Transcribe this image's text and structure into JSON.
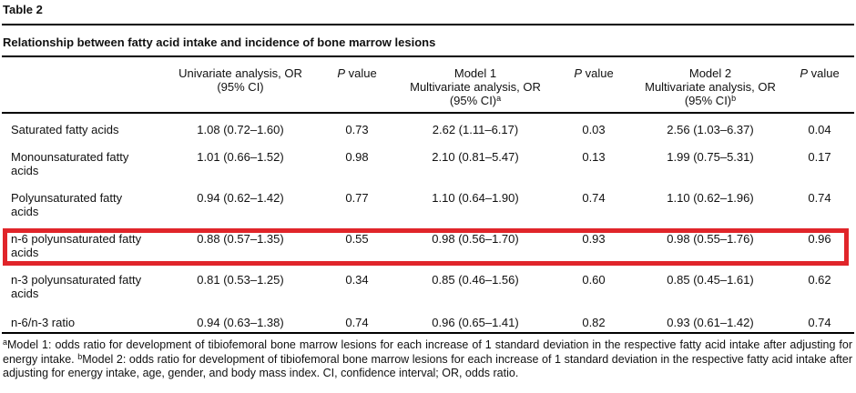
{
  "page": {
    "table_label": "Table 2",
    "title": "Relationship between fatty acid intake and incidence of bone marrow lesions"
  },
  "table": {
    "highlight_color": "#e0252a",
    "headers": {
      "univariate": {
        "line1": "Univariate analysis, OR",
        "line2": "(95% CI)"
      },
      "p1": {
        "italic": "P",
        "rest": " value"
      },
      "model1": {
        "line1": "Model 1",
        "line2": "Multivariate analysis, OR",
        "line3": "(95% CI)",
        "sup": "a"
      },
      "p2": {
        "italic": "P",
        "rest": " value"
      },
      "model2": {
        "line1": "Model 2",
        "line2": "Multivariate analysis, OR",
        "line3": "(95% CI)",
        "sup": "b"
      },
      "p3": {
        "italic": "P",
        "rest": " value"
      }
    },
    "rows": [
      {
        "label": "Saturated fatty acids",
        "univariate": "1.08 (0.72–1.60)",
        "p1": "0.73",
        "model1": "2.62 (1.11–6.17)",
        "p2": "0.03",
        "model2": "2.56 (1.03–6.37)",
        "p3": "0.04",
        "highlighted": false
      },
      {
        "label": "Monounsaturated fatty acids",
        "univariate": "1.01 (0.66–1.52)",
        "p1": "0.98",
        "model1": "2.10 (0.81–5.47)",
        "p2": "0.13",
        "model2": "1.99 (0.75–5.31)",
        "p3": "0.17",
        "highlighted": false
      },
      {
        "label": "Polyunsaturated fatty acids",
        "univariate": "0.94 (0.62–1.42)",
        "p1": "0.77",
        "model1": "1.10 (0.64–1.90)",
        "p2": "0.74",
        "model2": "1.10 (0.62–1.96)",
        "p3": "0.74",
        "highlighted": false
      },
      {
        "label": "n-6 polyunsaturated fatty acids",
        "univariate": "0.88 (0.57–1.35)",
        "p1": "0.55",
        "model1": "0.98 (0.56–1.70)",
        "p2": "0.93",
        "model2": "0.98 (0.55–1.76)",
        "p3": "0.96",
        "highlighted": true
      },
      {
        "label": "n-3 polyunsaturated fatty acids",
        "univariate": "0.81 (0.53–1.25)",
        "p1": "0.34",
        "model1": "0.85 (0.46–1.56)",
        "p2": "0.60",
        "model2": "0.85 (0.45–1.61)",
        "p3": "0.62",
        "highlighted": false
      },
      {
        "label": "n-6/n-3 ratio",
        "univariate": "0.94 (0.63–1.38)",
        "p1": "0.74",
        "model1": "0.96 (0.65–1.41)",
        "p2": "0.82",
        "model2": "0.93 (0.61–1.42)",
        "p3": "0.74",
        "highlighted": false
      }
    ]
  },
  "footnote": {
    "parts": [
      {
        "sup": "a"
      },
      {
        "text": "Model 1: odds ratio for development of tibiofemoral bone marrow lesions for each increase of 1 standard deviation in the respective fatty acid intake after adjusting for energy intake. "
      },
      {
        "sup": "b"
      },
      {
        "text": "Model 2: odds ratio for development of tibiofemoral bone marrow lesions for each increase of 1 standard deviation in the respective fatty acid intake after adjusting for energy intake, age, gender, and body mass index. CI, confidence interval; OR, odds ratio."
      }
    ]
  }
}
